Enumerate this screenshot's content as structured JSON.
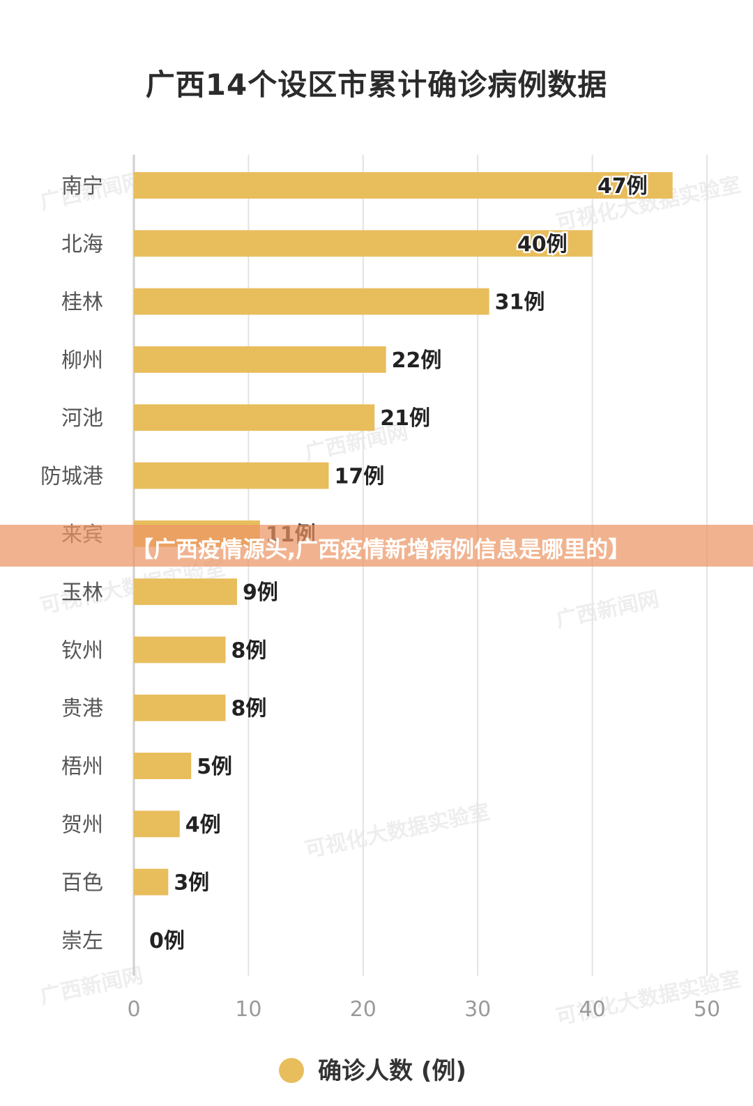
{
  "banner": {
    "text": "【广西疫情源头,广西疫情新增病例信息是哪里的】"
  },
  "watermarks": [
    "广西新闻网",
    "可视化大数据实验室"
  ],
  "colors": {
    "bar": "#E8BD5C",
    "grid": "#e3e3e3",
    "axis": "#cfcfcf"
  },
  "chart_data": {
    "type": "bar",
    "orientation": "horizontal",
    "title": "广西14个设区市累计确诊病例数据",
    "categories": [
      "南宁",
      "北海",
      "桂林",
      "柳州",
      "河池",
      "防城港",
      "来宾",
      "玉林",
      "钦州",
      "贵港",
      "梧州",
      "贺州",
      "百色",
      "崇左"
    ],
    "series": [
      {
        "name": "确诊人数 (例)",
        "values": [
          47,
          40,
          31,
          22,
          21,
          17,
          11,
          9,
          8,
          8,
          5,
          4,
          3,
          0
        ]
      }
    ],
    "value_labels": [
      "47例",
      "40例",
      "31例",
      "22例",
      "21例",
      "17例",
      "11例",
      "9例",
      "8例",
      "8例",
      "5例",
      "4例",
      "3例",
      "0例"
    ],
    "xlim": [
      0,
      50
    ],
    "xticks": [
      "0",
      "10",
      "20",
      "30",
      "40",
      "50"
    ],
    "grid": true,
    "legend": "bottom"
  }
}
